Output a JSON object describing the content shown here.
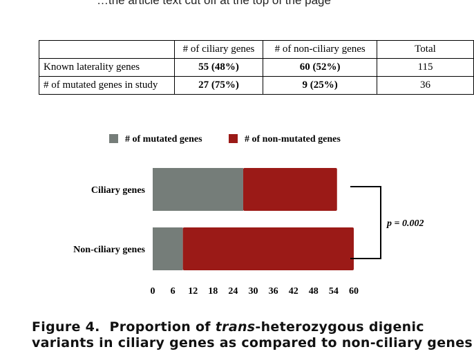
{
  "top_text": "…the article text cut off at the top of the page",
  "table": {
    "headers": [
      "",
      "# of ciliary genes",
      "# of non-ciliary genes",
      "Total"
    ],
    "rows": [
      [
        "Known laterality genes",
        "55 (48%)",
        "60 (52%)",
        "115"
      ],
      [
        "# of mutated genes in study",
        "27 (75%)",
        "9 (25%)",
        "36"
      ]
    ]
  },
  "chart_data": {
    "type": "bar",
    "orientation": "horizontal",
    "stacked": true,
    "categories": [
      "Ciliary genes",
      "Non-ciliary genes"
    ],
    "series": [
      {
        "name": "# of mutated genes",
        "values": [
          27,
          9
        ],
        "color": "#757d79"
      },
      {
        "name": "# of non-mutated genes",
        "values": [
          28,
          51
        ],
        "color": "#9b1a17"
      }
    ],
    "xlim": [
      0,
      60
    ],
    "xticks": [
      0,
      6,
      12,
      18,
      24,
      30,
      36,
      42,
      48,
      54,
      60
    ],
    "grid": false,
    "legend_position": "top",
    "annotation": "p = 0.002"
  },
  "caption": {
    "label": "Figure 4.",
    "pre": "Proportion of ",
    "italic": "trans",
    "post": "-heterozygous digenic variants in ciliary genes as compared to non-ciliary genes"
  }
}
